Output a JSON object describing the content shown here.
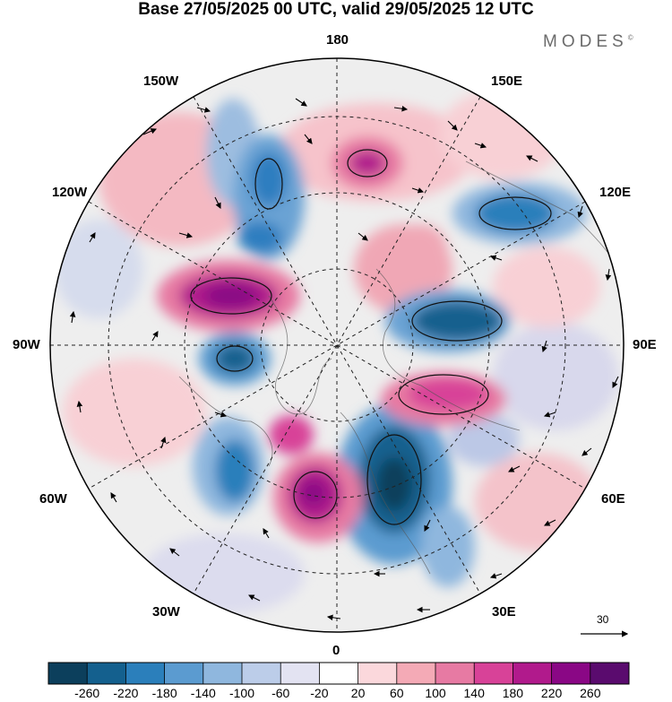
{
  "title": "Base 27/05/2025 00 UTC, valid 29/05/2025 12 UTC",
  "brand": {
    "name": "MODES",
    "mark": "©"
  },
  "longitude_labels": {
    "top": "180",
    "bottom": "0",
    "left": "90W",
    "right": "90E",
    "w150": "150W",
    "e150": "150E",
    "w120": "120W",
    "e120": "120E",
    "w60": "60W",
    "e60": "60E",
    "w30": "30W",
    "e30": "30E"
  },
  "wind_reference": {
    "value": "30"
  },
  "colorbar": {
    "ticks": [
      "-260",
      "-220",
      "-180",
      "-140",
      "-100",
      "-60",
      "-20",
      "20",
      "60",
      "100",
      "140",
      "180",
      "220",
      "260"
    ],
    "colors": [
      "#0c3f5c",
      "#14608e",
      "#2b7fbb",
      "#5b9bd0",
      "#8fb7de",
      "#bccde9",
      "#e3e3f2",
      "#ffffff",
      "#fbd8dc",
      "#f4aab6",
      "#e77aa3",
      "#d84298",
      "#b11a8c",
      "#8a0785",
      "#5a0b6e"
    ]
  }
}
